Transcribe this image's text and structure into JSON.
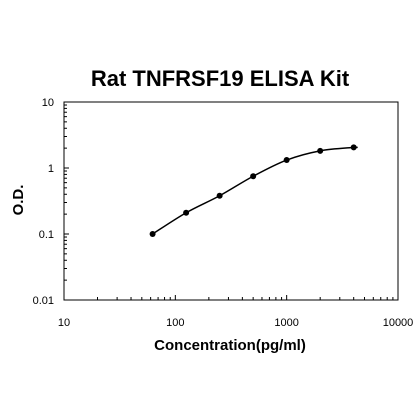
{
  "chart_data": {
    "type": "scatter",
    "title": "Rat TNFRSF19 ELISA Kit",
    "xlabel": "Concentration(pg/ml)",
    "ylabel": "O.D.",
    "x_scale": "log",
    "y_scale": "log",
    "xlim": [
      10,
      10000
    ],
    "ylim": [
      0.01,
      10
    ],
    "x_ticks": [
      "10",
      "100",
      "1000",
      "10000"
    ],
    "y_ticks": [
      "10",
      "1",
      "0.1",
      "0.01"
    ],
    "grid": false,
    "series": [
      {
        "x": [
          62.5,
          125,
          250,
          500,
          1000,
          2000,
          4000
        ],
        "y": [
          0.1,
          0.21,
          0.38,
          0.75,
          1.32,
          1.82,
          2.05
        ]
      }
    ],
    "fit_curve": true
  }
}
